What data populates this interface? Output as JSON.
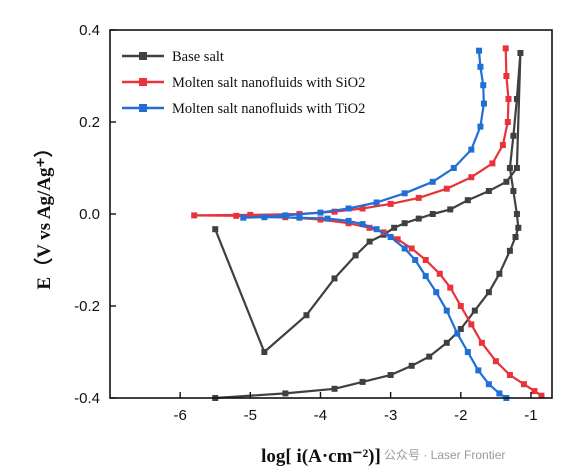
{
  "chart_data": {
    "type": "line",
    "xlabel": "log[ i(A·cm⁻²)]",
    "ylabel": "E（V vs Ag/Ag⁺）",
    "xlim": [
      -7,
      -0.7
    ],
    "ylim": [
      -0.4,
      0.4
    ],
    "xticks": [
      -6,
      -5,
      -4,
      -3,
      -2,
      -1
    ],
    "yticks": [
      -0.4,
      -0.2,
      0.0,
      0.2,
      0.4
    ],
    "legend_position": "top-left",
    "series": [
      {
        "name": "Base salt",
        "color": "#404040",
        "x": [
          -5.5,
          -4.5,
          -3.8,
          -3.4,
          -3.0,
          -2.7,
          -2.45,
          -2.2,
          -2.0,
          -1.8,
          -1.6,
          -1.45,
          -1.3,
          -1.22,
          -1.18,
          -1.2,
          -1.25,
          -1.3,
          -1.25,
          -1.2,
          -1.15,
          -1.2,
          -1.35,
          -1.6,
          -1.9,
          -2.15,
          -2.4,
          -2.6,
          -2.8,
          -2.95,
          -3.1,
          -3.3,
          -3.5,
          -3.8,
          -4.2,
          -4.8,
          -5.5
        ],
        "y": [
          -0.4,
          -0.39,
          -0.38,
          -0.365,
          -0.35,
          -0.33,
          -0.31,
          -0.28,
          -0.25,
          -0.21,
          -0.17,
          -0.13,
          -0.08,
          -0.05,
          -0.03,
          0.0,
          0.05,
          0.1,
          0.17,
          0.25,
          0.35,
          0.1,
          0.07,
          0.05,
          0.03,
          0.01,
          0.0,
          -0.01,
          -0.02,
          -0.03,
          -0.045,
          -0.06,
          -0.09,
          -0.14,
          -0.22,
          -0.3,
          -0.033
        ]
      },
      {
        "name": "Molten salt nanofluids with SiO2",
        "color": "#e8333a",
        "x": [
          -0.85,
          -0.95,
          -1.1,
          -1.3,
          -1.5,
          -1.7,
          -1.85,
          -2.0,
          -2.15,
          -2.3,
          -2.5,
          -2.7,
          -2.9,
          -3.1,
          -3.3,
          -3.6,
          -4.0,
          -4.5,
          -5.2,
          -5.8,
          -5.0,
          -4.3,
          -3.8,
          -3.4,
          -3.0,
          -2.6,
          -2.2,
          -1.85,
          -1.55,
          -1.4,
          -1.33,
          -1.32,
          -1.35,
          -1.36
        ],
        "y": [
          -0.395,
          -0.385,
          -0.37,
          -0.35,
          -0.32,
          -0.28,
          -0.24,
          -0.2,
          -0.16,
          -0.13,
          -0.1,
          -0.075,
          -0.055,
          -0.04,
          -0.03,
          -0.02,
          -0.012,
          -0.007,
          -0.004,
          -0.003,
          -0.002,
          0.0,
          0.005,
          0.012,
          0.022,
          0.035,
          0.055,
          0.08,
          0.11,
          0.15,
          0.2,
          0.25,
          0.3,
          0.36
        ]
      },
      {
        "name": "Molten salt nanofluids with TiO2",
        "color": "#1f6fd6",
        "x": [
          -1.35,
          -1.45,
          -1.6,
          -1.75,
          -1.9,
          -2.05,
          -2.2,
          -2.35,
          -2.5,
          -2.65,
          -2.8,
          -3.0,
          -3.2,
          -3.4,
          -3.6,
          -3.9,
          -4.3,
          -4.8,
          -5.1,
          -4.5,
          -4.0,
          -3.6,
          -3.2,
          -2.8,
          -2.4,
          -2.1,
          -1.85,
          -1.72,
          -1.67,
          -1.68,
          -1.72,
          -1.74
        ],
        "y": [
          -0.4,
          -0.39,
          -0.37,
          -0.34,
          -0.3,
          -0.26,
          -0.21,
          -0.17,
          -0.135,
          -0.1,
          -0.075,
          -0.05,
          -0.033,
          -0.022,
          -0.015,
          -0.01,
          -0.008,
          -0.007,
          -0.008,
          -0.003,
          0.003,
          0.012,
          0.025,
          0.045,
          0.07,
          0.1,
          0.14,
          0.19,
          0.24,
          0.28,
          0.32,
          0.355
        ]
      }
    ]
  },
  "watermark": "公众号 · Laser Frontier"
}
